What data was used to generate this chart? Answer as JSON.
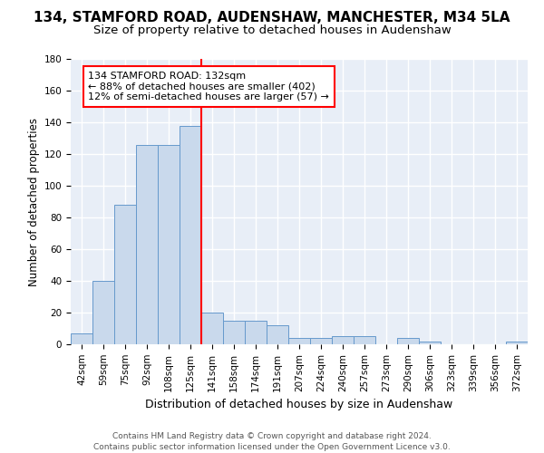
{
  "title1": "134, STAMFORD ROAD, AUDENSHAW, MANCHESTER, M34 5LA",
  "title2": "Size of property relative to detached houses in Audenshaw",
  "xlabel": "Distribution of detached houses by size in Audenshaw",
  "ylabel": "Number of detached properties",
  "footnote1": "Contains HM Land Registry data © Crown copyright and database right 2024.",
  "footnote2": "Contains public sector information licensed under the Open Government Licence v3.0.",
  "bin_labels": [
    "42sqm",
    "59sqm",
    "75sqm",
    "92sqm",
    "108sqm",
    "125sqm",
    "141sqm",
    "158sqm",
    "174sqm",
    "191sqm",
    "207sqm",
    "224sqm",
    "240sqm",
    "257sqm",
    "273sqm",
    "290sqm",
    "306sqm",
    "323sqm",
    "339sqm",
    "356sqm",
    "372sqm"
  ],
  "bar_values": [
    7,
    40,
    88,
    126,
    126,
    138,
    20,
    15,
    15,
    12,
    4,
    4,
    5,
    5,
    0,
    4,
    2,
    0,
    0,
    0,
    2
  ],
  "bar_color": "#c9d9ec",
  "bar_edge_color": "#6699cc",
  "vline_x_index": 6,
  "vline_color": "red",
  "annotation_text": "134 STAMFORD ROAD: 132sqm\n← 88% of detached houses are smaller (402)\n12% of semi-detached houses are larger (57) →",
  "annotation_box_color": "white",
  "annotation_box_edge": "red",
  "ylim": [
    0,
    180
  ],
  "yticks": [
    0,
    20,
    40,
    60,
    80,
    100,
    120,
    140,
    160,
    180
  ],
  "background_color": "#e8eef7",
  "grid_color": "white",
  "title1_fontsize": 11,
  "title2_fontsize": 9.5,
  "xlabel_fontsize": 9,
  "ylabel_fontsize": 8.5,
  "tick_fontsize": 7.5,
  "annotation_fontsize": 8,
  "footnote_fontsize": 6.5
}
